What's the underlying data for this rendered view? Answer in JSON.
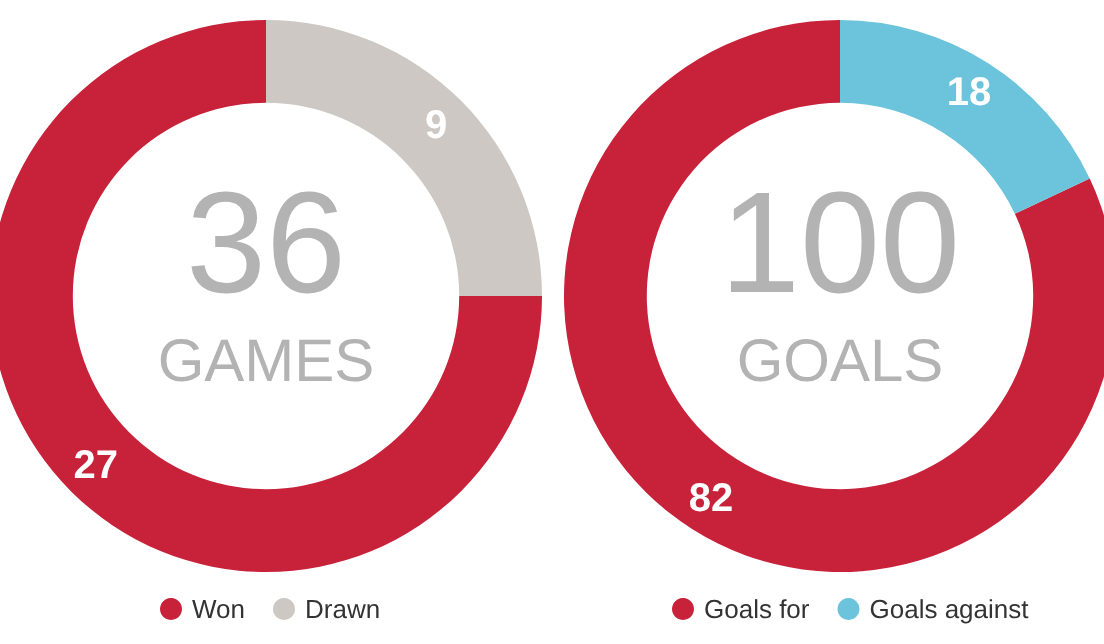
{
  "chart_data": [
    {
      "type": "donut",
      "categories": [
        "Won",
        "Drawn"
      ],
      "values": [
        27,
        9
      ],
      "colors": [
        "#c8213a",
        "#cdc8c3"
      ],
      "data_labels": true,
      "legend": "bottom",
      "annotations": [
        "36",
        "GAMES"
      ]
    },
    {
      "type": "donut",
      "categories": [
        "Goals for",
        "Goals against"
      ],
      "values": [
        82,
        18
      ],
      "colors": [
        "#c8213a",
        "#6cc4dc"
      ],
      "data_labels": true,
      "legend": "bottom",
      "annotations": [
        "100",
        "GOALS"
      ]
    }
  ]
}
